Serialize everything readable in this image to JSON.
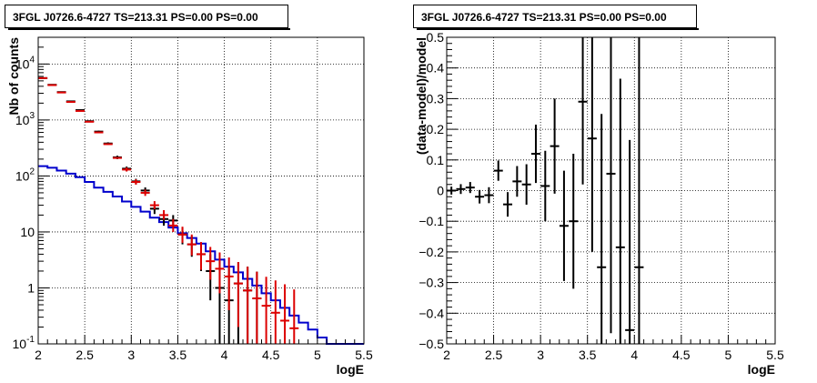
{
  "panels": {
    "left_title": "3FGL J0726.6-4727 TS=213.31 PS=0.00 PS=0.00",
    "right_title": "3FGL J0726.6-4727 TS=213.31 PS=0.00 PS=0.00"
  },
  "chart_data": [
    {
      "type": "line",
      "title": "3FGL J0726.6-4727 TS=213.31 PS=0.00 PS=0.00",
      "xlabel": "logE",
      "ylabel": "Nb of counts",
      "xlim": [
        2,
        5.5
      ],
      "ylim": [
        0.1,
        30000
      ],
      "yscale": "log",
      "grid": true,
      "xticks": [
        "2",
        "2.5",
        "3",
        "3.5",
        "4",
        "4.5",
        "5",
        "5.5"
      ],
      "yticks": [
        "10^-1",
        "1",
        "10",
        "10^2",
        "10^3",
        "10^4"
      ],
      "bin_edges": [
        2.0,
        2.1,
        2.2,
        2.3,
        2.4,
        2.5,
        2.6,
        2.7,
        2.8,
        2.9,
        3.0,
        3.1,
        3.2,
        3.3,
        3.4,
        3.5,
        3.6,
        3.7,
        3.8,
        3.9,
        4.0,
        4.1,
        4.2,
        4.3,
        4.4,
        4.5,
        4.6,
        4.7,
        4.8,
        4.9,
        5.0,
        5.1,
        5.2,
        5.3,
        5.4,
        5.5
      ],
      "series": [
        {
          "name": "",
          "kind": "step",
          "color": "#0000cc",
          "values": [
            150,
            140,
            125,
            110,
            95,
            78,
            62,
            52,
            43,
            35,
            28,
            23,
            18,
            15,
            12,
            9.5,
            7.8,
            6.2,
            4.5,
            3.2,
            2.4,
            1.9,
            1.45,
            1.1,
            0.8,
            0.6,
            0.44,
            0.32,
            0.24,
            0.18,
            0.13,
            0.1,
            0.1,
            0.1,
            0.1
          ]
        },
        {
          "name": "",
          "kind": "model_errorbars",
          "color": "#dd0000",
          "x": [
            2.05,
            2.15,
            2.25,
            2.35,
            2.45,
            2.55,
            2.65,
            2.75,
            2.85,
            2.95,
            3.05,
            3.15,
            3.25,
            3.35,
            3.45,
            3.55,
            3.65,
            3.75,
            3.85,
            3.95,
            4.05,
            4.15,
            4.25,
            4.35,
            4.45,
            4.55,
            4.65,
            4.75
          ],
          "values": [
            5600,
            4200,
            3100,
            2100,
            1450,
            930,
            600,
            370,
            210,
            130,
            78,
            50,
            30,
            20,
            13,
            9,
            6,
            4,
            3,
            2.2,
            1.6,
            1.2,
            0.9,
            0.65,
            0.48,
            0.36,
            0.26,
            0.19
          ],
          "err_low": [
            0,
            0,
            0,
            0,
            0,
            0,
            0,
            0,
            0,
            10,
            8,
            6,
            4.5,
            3.5,
            3,
            2.6,
            2.2,
            1.9,
            1.6,
            1.4,
            1.2,
            1.0,
            0.85,
            0.62,
            0.46,
            0.35,
            0.25,
            0.18
          ],
          "err_high": [
            0,
            0,
            0,
            0,
            0,
            0,
            0,
            0,
            0,
            12,
            9,
            7,
            5.5,
            4.5,
            4,
            3.4,
            3,
            2.6,
            2.4,
            2.1,
            1.9,
            1.7,
            1.5,
            1.3,
            1.1,
            1.0,
            0.9,
            0.75
          ]
        },
        {
          "name": "",
          "kind": "data_errorbars",
          "color": "#000000",
          "x": [
            2.05,
            2.15,
            2.25,
            2.35,
            2.45,
            2.55,
            2.65,
            2.75,
            2.85,
            2.95,
            3.05,
            3.15,
            3.25,
            3.35,
            3.45,
            3.55,
            3.65,
            3.75,
            3.85,
            3.95,
            4.05,
            4.15,
            4.25,
            4.35
          ],
          "values": [
            5600,
            4250,
            3150,
            2150,
            1500,
            950,
            620,
            380,
            215,
            135,
            80,
            55,
            26,
            17,
            16,
            9,
            6,
            4,
            2,
            1,
            0.6,
            1.2,
            0.9,
            0.65
          ],
          "err_low": [
            75,
            65,
            56,
            46,
            39,
            31,
            25,
            19,
            15,
            12,
            9,
            7.4,
            5.1,
            4.1,
            4,
            3,
            2.4,
            2,
            1.4,
            1,
            0.6,
            1.1,
            0.85,
            0.62
          ],
          "err_high": [
            75,
            65,
            56,
            46,
            39,
            31,
            25,
            19,
            15,
            12,
            9,
            7.4,
            5.1,
            4.1,
            4,
            3,
            2.4,
            2,
            2,
            2,
            1.8,
            1.7,
            1.5,
            1.3
          ]
        }
      ]
    },
    {
      "type": "scatter",
      "title": "3FGL J0726.6-4727 TS=213.31 PS=0.00 PS=0.00",
      "xlabel": "logE",
      "ylabel": "(data-model)/model",
      "xlim": [
        2,
        5.5
      ],
      "ylim": [
        -0.5,
        0.5
      ],
      "grid": true,
      "xticks": [
        "2",
        "2.5",
        "3",
        "3.5",
        "4",
        "4.5",
        "5",
        "5.5"
      ],
      "yticks": [
        "−0.5",
        "−0.4",
        "−0.3",
        "−0.2",
        "−0.1",
        "0",
        "0.1",
        "0.2",
        "0.3",
        "0.4",
        "0.5"
      ],
      "series": [
        {
          "name": "",
          "color": "#000000",
          "x": [
            2.05,
            2.15,
            2.25,
            2.35,
            2.45,
            2.55,
            2.65,
            2.75,
            2.85,
            2.95,
            3.05,
            3.15,
            3.25,
            3.35,
            3.45,
            3.55,
            3.65,
            3.75,
            3.85,
            3.95,
            4.05
          ],
          "y": [
            0.0,
            0.005,
            0.01,
            -0.02,
            -0.015,
            0.065,
            -0.045,
            0.03,
            0.02,
            0.12,
            0.015,
            0.145,
            -0.115,
            -0.1,
            0.29,
            0.17,
            -0.25,
            0.055,
            -0.185,
            -0.455,
            -0.25
          ],
          "err": [
            0.013,
            0.016,
            0.018,
            0.022,
            0.026,
            0.033,
            0.04,
            0.05,
            0.066,
            0.095,
            0.115,
            0.155,
            0.18,
            0.22,
            0.27,
            0.37,
            0.5,
            0.52,
            0.55,
            0.62,
            0.8
          ]
        }
      ]
    }
  ]
}
